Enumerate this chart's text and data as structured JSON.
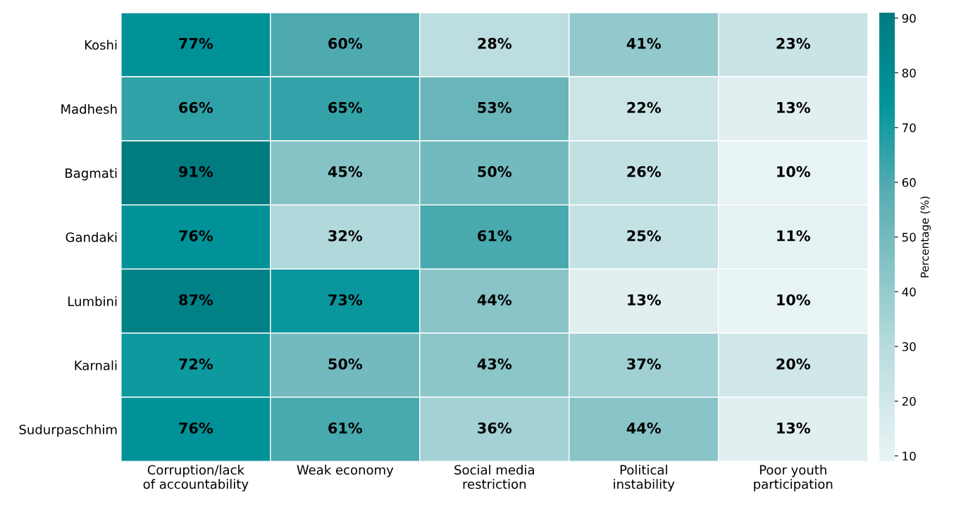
{
  "chart_data": {
    "type": "heatmap",
    "clabel": "Percentage (%)",
    "categories": [
      "Corruption/lack of accountability",
      "Weak economy",
      "Social media restriction",
      "Political instability",
      "Poor youth participation"
    ],
    "y_categories": [
      "Koshi",
      "Madhesh",
      "Bagmati",
      "Gandaki",
      "Lumbini",
      "Karnali",
      "Sudurpaschhim"
    ],
    "cells": [
      [
        77,
        60,
        28,
        41,
        23
      ],
      [
        66,
        65,
        53,
        22,
        13
      ],
      [
        91,
        45,
        50,
        26,
        10
      ],
      [
        76,
        32,
        61,
        25,
        11
      ],
      [
        87,
        73,
        44,
        13,
        10
      ],
      [
        72,
        50,
        43,
        37,
        20
      ],
      [
        76,
        61,
        36,
        44,
        13
      ]
    ],
    "cell_labels": [
      [
        "77%",
        "60%",
        "28%",
        "41%",
        "23%"
      ],
      [
        "66%",
        "65%",
        "53%",
        "22%",
        "13%"
      ],
      [
        "91%",
        "45%",
        "50%",
        "26%",
        "10%"
      ],
      [
        "76%",
        "32%",
        "61%",
        "25%",
        "11%"
      ],
      [
        "87%",
        "73%",
        "44%",
        "13%",
        "10%"
      ],
      [
        "72%",
        "50%",
        "43%",
        "37%",
        "20%"
      ],
      [
        "76%",
        "61%",
        "36%",
        "44%",
        "13%"
      ]
    ],
    "clim": [
      9,
      91
    ],
    "cticks": [
      10,
      20,
      30,
      40,
      50,
      60,
      70,
      80,
      90
    ]
  }
}
